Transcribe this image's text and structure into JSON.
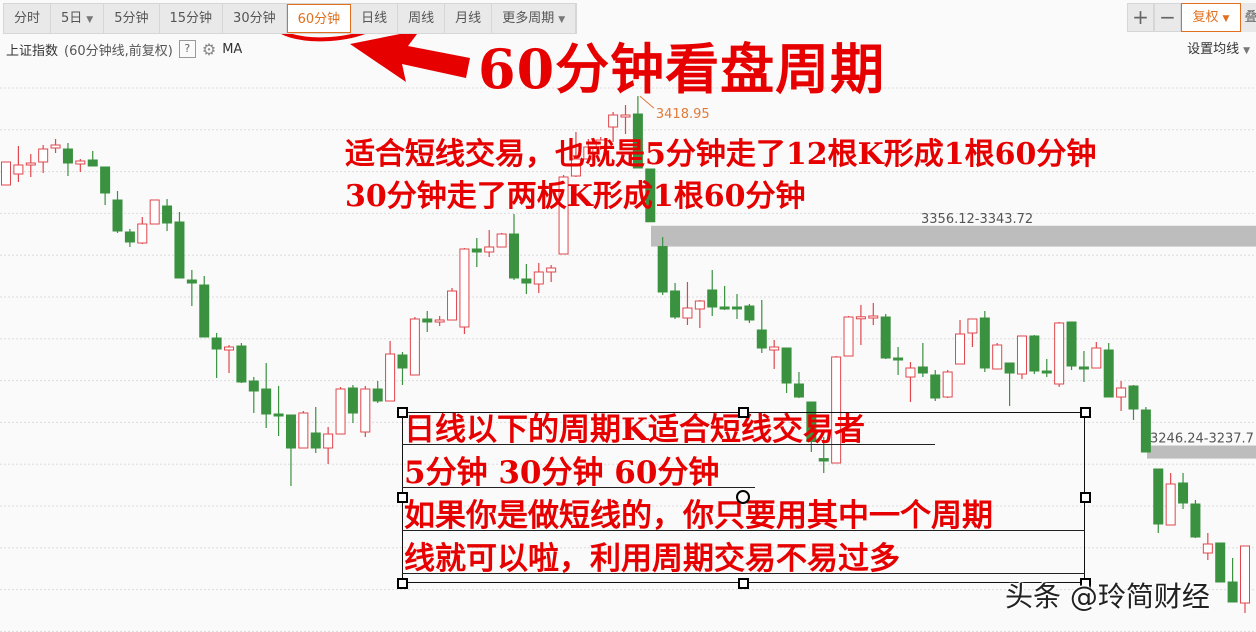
{
  "toolbar": {
    "tabs": [
      {
        "label": "分时"
      },
      {
        "label": "5日",
        "dropdown": true
      },
      {
        "label": "5分钟"
      },
      {
        "label": "15分钟"
      },
      {
        "label": "30分钟"
      },
      {
        "label": "60分钟",
        "active": true
      },
      {
        "label": "日线"
      },
      {
        "label": "周线"
      },
      {
        "label": "月线"
      },
      {
        "label": "更多周期",
        "dropdown": true
      }
    ],
    "zoom_in": "+",
    "zoom_out": "−",
    "adjust_label": "复权",
    "cut_label": "叠"
  },
  "info": {
    "index_name": "上证指数",
    "subtitle": "(60分钟线,前复权)",
    "help": "?",
    "indicator": "MA",
    "set_ma": "设置均线"
  },
  "annotations": {
    "title": "60分钟看盘周期",
    "line1": "适合短线交易，也就是5分钟走了12根K形成1根60分钟",
    "line2": "30分钟走了两板K形成1根60分钟",
    "box_lines": [
      "日线以下的周期K适合短线交易者",
      "5分钟  30分钟 60分钟",
      "如果你是做短线的，你只要用其中一个周期",
      "线就可以啦，利用周期交易不易过多"
    ],
    "watermark": "头条 @玲简财经",
    "annotation_color": "#e60000"
  },
  "chart_data": {
    "type": "candlestick",
    "up_color": "#e0474c",
    "down_color": "#3a913f",
    "high_label": "3418.95",
    "gaps": [
      {
        "label": "3356.12-3343.72",
        "top": 3356.12,
        "bottom": 3343.72
      },
      {
        "label": "3246.24-3237.7",
        "top": 3246.24,
        "bottom": 3237.7
      }
    ],
    "candles": [
      [
        3374.5,
        3386,
        3374.5,
        3386
      ],
      [
        3380,
        3394,
        3376,
        3384.5
      ],
      [
        3384.5,
        3390,
        3378.5,
        3385.5
      ],
      [
        3386,
        3394.5,
        3380.5,
        3392.5
      ],
      [
        3393,
        3397.5,
        3390.5,
        3394.5
      ],
      [
        3392.5,
        3395.5,
        3379,
        3385.5
      ],
      [
        3385,
        3387.5,
        3381,
        3386.5
      ],
      [
        3387,
        3391.5,
        3384,
        3384
      ],
      [
        3383.5,
        3383.5,
        3364.5,
        3370.5
      ],
      [
        3367,
        3371.5,
        3350.5,
        3351.5
      ],
      [
        3351,
        3352.5,
        3343.5,
        3346
      ],
      [
        3345.5,
        3358.5,
        3345,
        3355
      ],
      [
        3355,
        3367,
        3355,
        3367
      ],
      [
        3364,
        3367.5,
        3351.5,
        3355.5
      ],
      [
        3356,
        3361,
        3328,
        3328
      ],
      [
        3327,
        3332,
        3314,
        3325.5
      ],
      [
        3324.5,
        3329,
        3298.5,
        3298.5
      ],
      [
        3298,
        3300.5,
        3278,
        3292.5
      ],
      [
        3292,
        3294.5,
        3280.5,
        3293.5
      ],
      [
        3294,
        3295.5,
        3275.5,
        3276
      ],
      [
        3276.5,
        3278.5,
        3260.5,
        3271.5
      ],
      [
        3272.5,
        3285.5,
        3253,
        3260
      ],
      [
        3260,
        3274,
        3249,
        3259.9
      ],
      [
        3259.5,
        3259.5,
        3224,
        3243
      ],
      [
        3243,
        3261.5,
        3243,
        3260.5
      ],
      [
        3250.5,
        3263.5,
        3240.5,
        3243
      ],
      [
        3243,
        3253.5,
        3235,
        3250
      ],
      [
        3250,
        3273.5,
        3250,
        3272.5
      ],
      [
        3273,
        3274.5,
        3255.5,
        3260.5
      ],
      [
        3251,
        3274,
        3248.5,
        3272.5
      ],
      [
        3272.5,
        3276.5,
        3265.5,
        3266.5
      ],
      [
        3266.5,
        3296.5,
        3266.5,
        3290
      ],
      [
        3289.5,
        3291,
        3274.5,
        3283
      ],
      [
        3279.5,
        3308.5,
        3279.5,
        3307.5
      ],
      [
        3307.5,
        3311.5,
        3301,
        3306
      ],
      [
        3306,
        3309,
        3304,
        3307
      ],
      [
        3307,
        3323,
        3307,
        3321.5
      ],
      [
        3303.5,
        3343,
        3300,
        3342.5
      ],
      [
        3342.5,
        3348,
        3333.5,
        3341
      ],
      [
        3341,
        3352,
        3338.5,
        3343.5
      ],
      [
        3343.5,
        3350.5,
        3343.5,
        3350
      ],
      [
        3350,
        3360,
        3327,
        3328
      ],
      [
        3327.5,
        3335,
        3320,
        3325.5
      ],
      [
        3325,
        3335.5,
        3320.5,
        3331
      ],
      [
        3331,
        3334.5,
        3326,
        3333
      ],
      [
        3340,
        3379.5,
        3340,
        3378.5
      ],
      [
        3379,
        3401,
        3378.5,
        3387.5
      ],
      [
        3387.5,
        3397.5,
        3386,
        3393.5
      ],
      [
        3393.5,
        3398.5,
        3392,
        3397
      ],
      [
        3403.5,
        3411,
        3396,
        3409.5
      ],
      [
        3408.5,
        3414.5,
        3400,
        3409.5
      ],
      [
        3410,
        3418.95,
        3383,
        3383
      ],
      [
        3382.5,
        3382.5,
        3356.12,
        3356.12
      ],
      [
        3343.72,
        3348.5,
        3319.5,
        3321
      ],
      [
        3321.5,
        3325.5,
        3307.5,
        3308.5
      ],
      [
        3308,
        3326,
        3304.5,
        3313
      ],
      [
        3312.5,
        3317,
        3303,
        3316.5
      ],
      [
        3322,
        3332,
        3309,
        3313.5
      ],
      [
        3313.5,
        3324,
        3312,
        3313.4
      ],
      [
        3313.5,
        3320,
        3307.5,
        3313.4
      ],
      [
        3314,
        3315,
        3305.5,
        3307
      ],
      [
        3302,
        3317,
        3290.5,
        3293
      ],
      [
        3292,
        3297,
        3282.5,
        3293.5
      ],
      [
        3293,
        3293,
        3270.5,
        3275.5
      ],
      [
        3275,
        3281,
        3268,
        3268.5
      ],
      [
        3266,
        3266,
        3241,
        3246.24
      ],
      [
        3237.7,
        3248.5,
        3230.5,
        3236.5
      ],
      [
        3235.5,
        3289,
        3235.5,
        3288.5
      ],
      [
        3289,
        3309,
        3289,
        3308.5
      ],
      [
        3308.5,
        3314.5,
        3294.5,
        3308.6
      ],
      [
        3308,
        3315.5,
        3304.5,
        3309
      ],
      [
        3308.5,
        3310,
        3287.5,
        3288
      ],
      [
        3288,
        3293.5,
        3279.5,
        3287.9
      ],
      [
        3278.5,
        3286,
        3266,
        3283
      ],
      [
        3283.5,
        3295.5,
        3278.5,
        3280.5
      ],
      [
        3279.5,
        3282,
        3266.5,
        3268
      ],
      [
        3268.5,
        3282,
        3268,
        3281
      ],
      [
        3285,
        3307,
        3285,
        3300
      ],
      [
        3300.5,
        3307.5,
        3293.5,
        3307.5
      ],
      [
        3308,
        3311.5,
        3281,
        3283
      ],
      [
        3282.5,
        3295.5,
        3282.5,
        3294.5
      ],
      [
        3285.5,
        3285.5,
        3264,
        3280.5
      ],
      [
        3280,
        3299,
        3277.5,
        3299
      ],
      [
        3299,
        3299.5,
        3280,
        3281.5
      ],
      [
        3281.5,
        3287.5,
        3278.5,
        3280.5
      ],
      [
        3275,
        3306,
        3273.5,
        3305.5
      ],
      [
        3306,
        3306,
        3282,
        3284
      ],
      [
        3283.5,
        3291.5,
        3276,
        3283.4
      ],
      [
        3283,
        3296,
        3283,
        3293
      ],
      [
        3292,
        3295.5,
        3268.5,
        3268.5
      ],
      [
        3268.5,
        3276.5,
        3261.5,
        3273
      ],
      [
        3274,
        3274.5,
        3257,
        3262.5
      ],
      [
        3262,
        3263.5,
        3241,
        3241
      ],
      [
        3232.5,
        3232.5,
        3200.5,
        3205
      ],
      [
        3204.5,
        3230.5,
        3204.5,
        3225
      ],
      [
        3225.5,
        3230.5,
        3212.5,
        3215.5
      ],
      [
        3215,
        3217,
        3198,
        3198.5
      ],
      [
        3190.5,
        3200.5,
        3187,
        3195
      ],
      [
        3195.5,
        3195.5,
        3176,
        3176
      ],
      [
        3176,
        3188,
        3166,
        3166
      ],
      [
        3165.5,
        3194,
        3160.5,
        3194
      ]
    ]
  }
}
